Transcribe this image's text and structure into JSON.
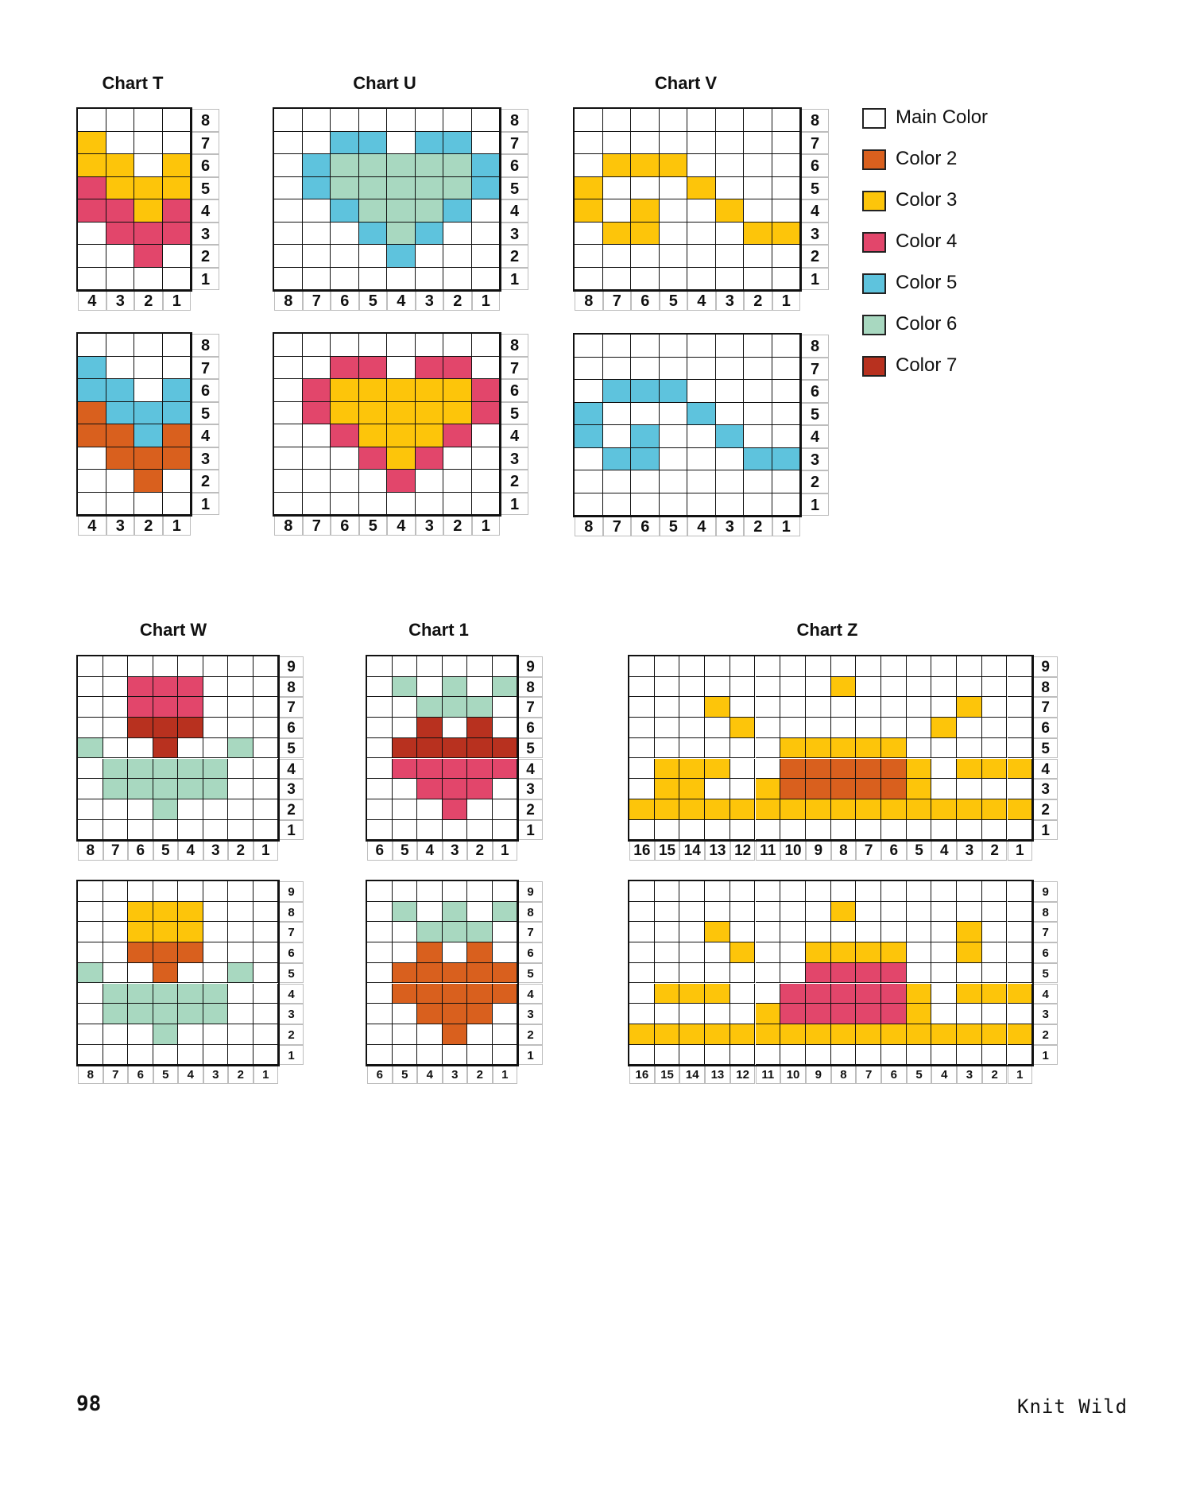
{
  "legend": [
    {
      "label": "Main Color",
      "color": "#ffffff"
    },
    {
      "label": "Color 2",
      "color": "#d9601e"
    },
    {
      "label": "Color 3",
      "color": "#fdc50a"
    },
    {
      "label": "Color 4",
      "color": "#e2466b"
    },
    {
      "label": "Color 5",
      "color": "#5ec3dd"
    },
    {
      "label": "Color 6",
      "color": "#a8d8c0"
    },
    {
      "label": "Color 7",
      "color": "#b8311f"
    }
  ],
  "colors": {
    "M": "#ffffff",
    "2": "#d9601e",
    "3": "#fdc50a",
    "4": "#e2466b",
    "5": "#5ec3dd",
    "6": "#a8d8c0",
    "7": "#b8311f"
  },
  "charts": [
    {
      "title": "Chart T",
      "rows_top_to_bottom": [
        "MMMM",
        "3MMM",
        "33M3",
        "4333",
        "4434",
        "M444",
        "MM4M",
        "MMMM"
      ],
      "row_labels": [
        "8",
        "7",
        "6",
        "5",
        "4",
        "3",
        "2",
        "1"
      ],
      "col_labels": [
        "4",
        "3",
        "2",
        "1"
      ]
    },
    {
      "title": "",
      "rows_top_to_bottom": [
        "MMMM",
        "5MMM",
        "55M5",
        "2555",
        "2252",
        "M222",
        "MM2M",
        "MMMM"
      ],
      "row_labels": [
        "8",
        "7",
        "6",
        "5",
        "4",
        "3",
        "2",
        "1"
      ],
      "col_labels": [
        "4",
        "3",
        "2",
        "1"
      ]
    },
    {
      "title": "Chart U",
      "rows_top_to_bottom": [
        "MMMMMMMM",
        "MM55M55M",
        "M5666665",
        "M5666665",
        "MM56665M",
        "MMM565MM",
        "MMMM5MMM",
        "MMMMMMMM"
      ],
      "row_labels": [
        "8",
        "7",
        "6",
        "5",
        "4",
        "3",
        "2",
        "1"
      ],
      "col_labels": [
        "8",
        "7",
        "6",
        "5",
        "4",
        "3",
        "2",
        "1"
      ]
    },
    {
      "title": "",
      "rows_top_to_bottom": [
        "MMMMMMMM",
        "MM44M44M",
        "M4333334",
        "M4333334",
        "MM43334M",
        "MMM434MM",
        "MMMM4MMM",
        "MMMMMMMM"
      ],
      "row_labels": [
        "8",
        "7",
        "6",
        "5",
        "4",
        "3",
        "2",
        "1"
      ],
      "col_labels": [
        "8",
        "7",
        "6",
        "5",
        "4",
        "3",
        "2",
        "1"
      ]
    },
    {
      "title": "Chart V",
      "rows_top_to_bottom": [
        "MMMMMMMM",
        "MMMMMMMM",
        "M333MMMM",
        "3MMM3MMM",
        "3M3MM3MM",
        "M33MMM33",
        "MMMMMMMM",
        "MMMMMMMM"
      ],
      "row_labels": [
        "8",
        "7",
        "6",
        "5",
        "4",
        "3",
        "2",
        "1"
      ],
      "col_labels": [
        "8",
        "7",
        "6",
        "5",
        "4",
        "3",
        "2",
        "1"
      ]
    },
    {
      "title": "",
      "rows_top_to_bottom": [
        "MMMMMMMM",
        "MMMMMMMM",
        "M555MMMM",
        "5MMM5MMM",
        "5M5MM5MM",
        "M55MMM55",
        "MMMMMMMM",
        "MMMMMMMM"
      ],
      "row_labels": [
        "8",
        "7",
        "6",
        "5",
        "4",
        "3",
        "2",
        "1"
      ],
      "col_labels": [
        "8",
        "7",
        "6",
        "5",
        "4",
        "3",
        "2",
        "1"
      ]
    },
    {
      "title": "Chart W",
      "rows_top_to_bottom": [
        "MMMMMMMM",
        "MM444MMM",
        "MM444MMM",
        "MM777MMM",
        "6MM7MM6M",
        "M66666MM",
        "M66666MM",
        "MMM6MMMM",
        "MMMMMMMM"
      ],
      "row_labels": [
        "9",
        "8",
        "7",
        "6",
        "5",
        "4",
        "3",
        "2",
        "1"
      ],
      "col_labels": [
        "8",
        "7",
        "6",
        "5",
        "4",
        "3",
        "2",
        "1"
      ]
    },
    {
      "title": "",
      "rows_top_to_bottom": [
        "MMMMMMMM",
        "MM333MMM",
        "MM333MMM",
        "MM222MMM",
        "6MM2MM6M",
        "M66666MM",
        "M66666MM",
        "MMM6MMMM",
        "MMMMMMMM"
      ],
      "row_labels": [
        "9",
        "8",
        "7",
        "6",
        "5",
        "4",
        "3",
        "2",
        "1"
      ],
      "col_labels": [
        "8",
        "7",
        "6",
        "5",
        "4",
        "3",
        "2",
        "1"
      ]
    },
    {
      "title": "Chart 1",
      "rows_top_to_bottom": [
        "MMMMMM",
        "M6M6M6",
        "MM666M",
        "MM7M7M",
        "M77777",
        "M44444",
        "MM444M",
        "MMM4MM",
        "MMMMMM"
      ],
      "row_labels": [
        "9",
        "8",
        "7",
        "6",
        "5",
        "4",
        "3",
        "2",
        "1"
      ],
      "col_labels": [
        "6",
        "5",
        "4",
        "3",
        "2",
        "1"
      ]
    },
    {
      "title": "",
      "rows_top_to_bottom": [
        "MMMMMM",
        "M6M6M6",
        "MM666M",
        "MM2M2M",
        "M22222",
        "M22222",
        "MM222M",
        "MMM2MM",
        "MMMMMM"
      ],
      "row_labels": [
        "9",
        "8",
        "7",
        "6",
        "5",
        "4",
        "3",
        "2",
        "1"
      ],
      "col_labels": [
        "6",
        "5",
        "4",
        "3",
        "2",
        "1"
      ]
    },
    {
      "title": "Chart Z",
      "rows_top_to_bottom": [
        "MMMMMMMMMMMMMMMM",
        "MMMMMMMM3MMMMMMM",
        "MMM3MMMMMMMMM3MM",
        "MMMM3MMMMMMM3MMM",
        "MMMMMM33333MMMMM",
        "M333MM222223M333",
        "M33MM3222223MMMM",
        "3333333333333333",
        "MMMMMMMMMMMMMMMM"
      ],
      "row_labels": [
        "9",
        "8",
        "7",
        "6",
        "5",
        "4",
        "3",
        "2",
        "1"
      ],
      "col_labels": [
        "16",
        "15",
        "14",
        "13",
        "12",
        "11",
        "10",
        "9",
        "8",
        "7",
        "6",
        "5",
        "4",
        "3",
        "2",
        "1"
      ]
    },
    {
      "title": "",
      "rows_top_to_bottom": [
        "MMMMMMMMMMMMMMMM",
        "MMMMMMMM3MMMMMMM",
        "MMM3MMMMMMMMM3MM",
        "MMMM3MM3333MM3MM",
        "MMMMMMM4444MMMMM",
        "M333MM444443M333",
        "MMMMM3444443MMMM",
        "3333333333333333",
        "MMMMMMMMMMMMMMMM"
      ],
      "row_labels": [
        "9",
        "8",
        "7",
        "6",
        "5",
        "4",
        "3",
        "2",
        "1"
      ],
      "col_labels": [
        "16",
        "15",
        "14",
        "13",
        "12",
        "11",
        "10",
        "9",
        "8",
        "7",
        "6",
        "5",
        "4",
        "3",
        "2",
        "1"
      ]
    }
  ],
  "footer": {
    "page_number": "98",
    "book_title": "Knit Wild"
  }
}
